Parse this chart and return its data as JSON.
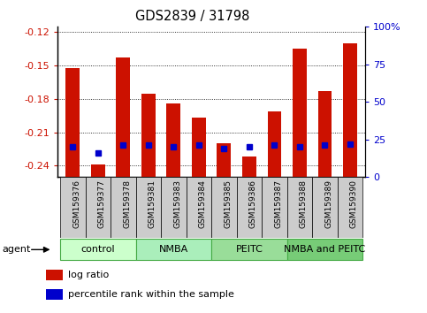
{
  "title": "GDS2839 / 31798",
  "samples": [
    "GSM159376",
    "GSM159377",
    "GSM159378",
    "GSM159381",
    "GSM159383",
    "GSM159384",
    "GSM159385",
    "GSM159386",
    "GSM159387",
    "GSM159388",
    "GSM159389",
    "GSM159390"
  ],
  "log_ratio": [
    -0.152,
    -0.239,
    -0.143,
    -0.175,
    -0.184,
    -0.197,
    -0.22,
    -0.232,
    -0.191,
    -0.135,
    -0.173,
    -0.13
  ],
  "percentile_rank_pct": [
    20,
    16,
    21,
    21,
    20,
    21,
    19,
    20,
    21,
    20,
    21,
    22
  ],
  "groups": [
    {
      "label": "control",
      "start": 0,
      "end": 3
    },
    {
      "label": "NMBA",
      "start": 3,
      "end": 6
    },
    {
      "label": "PEITC",
      "start": 6,
      "end": 9
    },
    {
      "label": "NMBA and PEITC",
      "start": 9,
      "end": 12
    }
  ],
  "ylim_left": [
    -0.25,
    -0.115
  ],
  "ylim_right": [
    0,
    100
  ],
  "yticks_left": [
    -0.24,
    -0.21,
    -0.18,
    -0.15,
    -0.12
  ],
  "yticks_right": [
    0,
    25,
    50,
    75,
    100
  ],
  "bar_color": "#cc1100",
  "dot_color": "#0000cc",
  "bar_width": 0.55,
  "background_color": "#ffffff",
  "tick_label_color_left": "#cc1100",
  "tick_label_color_right": "#0000cc",
  "legend_items": [
    {
      "label": "log ratio",
      "color": "#cc1100"
    },
    {
      "label": "percentile rank within the sample",
      "color": "#0000cc"
    }
  ],
  "group_bg_colors": [
    "#ccffcc",
    "#aaeebb",
    "#99dd99",
    "#77cc77"
  ],
  "group_border_color": "#44aa44",
  "sample_bg_color": "#cccccc",
  "sample_label_fontsize": 6.5,
  "grid_color": "black",
  "grid_style": "dotted",
  "grid_lw": 0.6
}
